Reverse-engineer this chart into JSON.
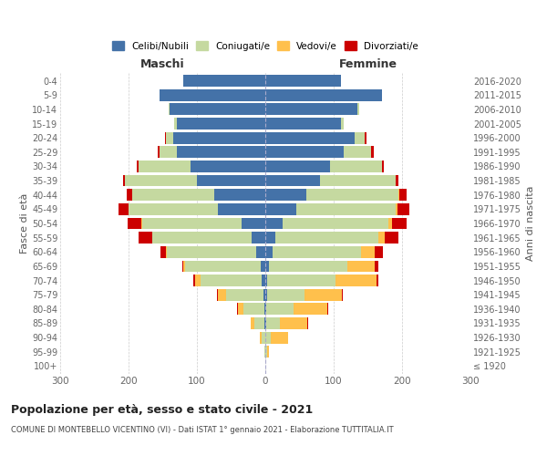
{
  "age_groups": [
    "100+",
    "95-99",
    "90-94",
    "85-89",
    "80-84",
    "75-79",
    "70-74",
    "65-69",
    "60-64",
    "55-59",
    "50-54",
    "45-49",
    "40-44",
    "35-39",
    "30-34",
    "25-29",
    "20-24",
    "15-19",
    "10-14",
    "5-9",
    "0-4"
  ],
  "birth_years": [
    "≤ 1920",
    "1921-1925",
    "1926-1930",
    "1931-1935",
    "1936-1940",
    "1941-1945",
    "1946-1950",
    "1951-1955",
    "1956-1960",
    "1961-1965",
    "1966-1970",
    "1971-1975",
    "1976-1980",
    "1981-1985",
    "1986-1990",
    "1991-1995",
    "1996-2000",
    "2001-2005",
    "2006-2010",
    "2011-2015",
    "2016-2020"
  ],
  "males": {
    "celibi": [
      0,
      0,
      0,
      1,
      2,
      3,
      5,
      7,
      14,
      20,
      35,
      70,
      75,
      100,
      110,
      130,
      135,
      130,
      140,
      155,
      120
    ],
    "coniugati": [
      0,
      1,
      5,
      15,
      30,
      55,
      90,
      110,
      130,
      145,
      145,
      130,
      120,
      105,
      75,
      25,
      10,
      3,
      1,
      0,
      0
    ],
    "vedovi": [
      0,
      0,
      3,
      5,
      8,
      12,
      8,
      3,
      2,
      1,
      1,
      0,
      0,
      0,
      0,
      0,
      0,
      0,
      0,
      0,
      0
    ],
    "divorziati": [
      0,
      0,
      0,
      0,
      1,
      1,
      2,
      2,
      8,
      20,
      20,
      15,
      8,
      3,
      3,
      2,
      2,
      0,
      0,
      0,
      0
    ]
  },
  "females": {
    "nubili": [
      0,
      0,
      0,
      1,
      1,
      2,
      3,
      5,
      10,
      15,
      25,
      45,
      60,
      80,
      95,
      115,
      130,
      110,
      135,
      170,
      110
    ],
    "coniugate": [
      0,
      2,
      8,
      20,
      40,
      55,
      100,
      115,
      130,
      150,
      155,
      145,
      135,
      110,
      75,
      40,
      15,
      5,
      2,
      1,
      0
    ],
    "vedove": [
      0,
      3,
      25,
      40,
      50,
      55,
      60,
      40,
      20,
      10,
      5,
      3,
      1,
      0,
      0,
      0,
      0,
      0,
      0,
      0,
      0
    ],
    "divorziate": [
      0,
      0,
      0,
      1,
      1,
      1,
      2,
      5,
      12,
      20,
      22,
      18,
      10,
      5,
      3,
      3,
      3,
      0,
      0,
      0,
      0
    ]
  },
  "colors": {
    "celibi": "#4472a8",
    "coniugati": "#c5d9a0",
    "vedovi": "#ffc04c",
    "divorziati": "#cc0000"
  },
  "xlim": 300,
  "title": "Popolazione per età, sesso e stato civile - 2021",
  "subtitle": "COMUNE DI MONTEBELLO VICENTINO (VI) - Dati ISTAT 1° gennaio 2021 - Elaborazione TUTTITALIA.IT",
  "ylabel_left": "Fasce di età",
  "ylabel_right": "Anni di nascita",
  "header_left": "Maschi",
  "header_right": "Femmine",
  "legend_labels": [
    "Celibi/Nubili",
    "Coniugati/e",
    "Vedovi/e",
    "Divorziati/e"
  ],
  "background_color": "#ffffff",
  "grid_color": "#cccccc"
}
